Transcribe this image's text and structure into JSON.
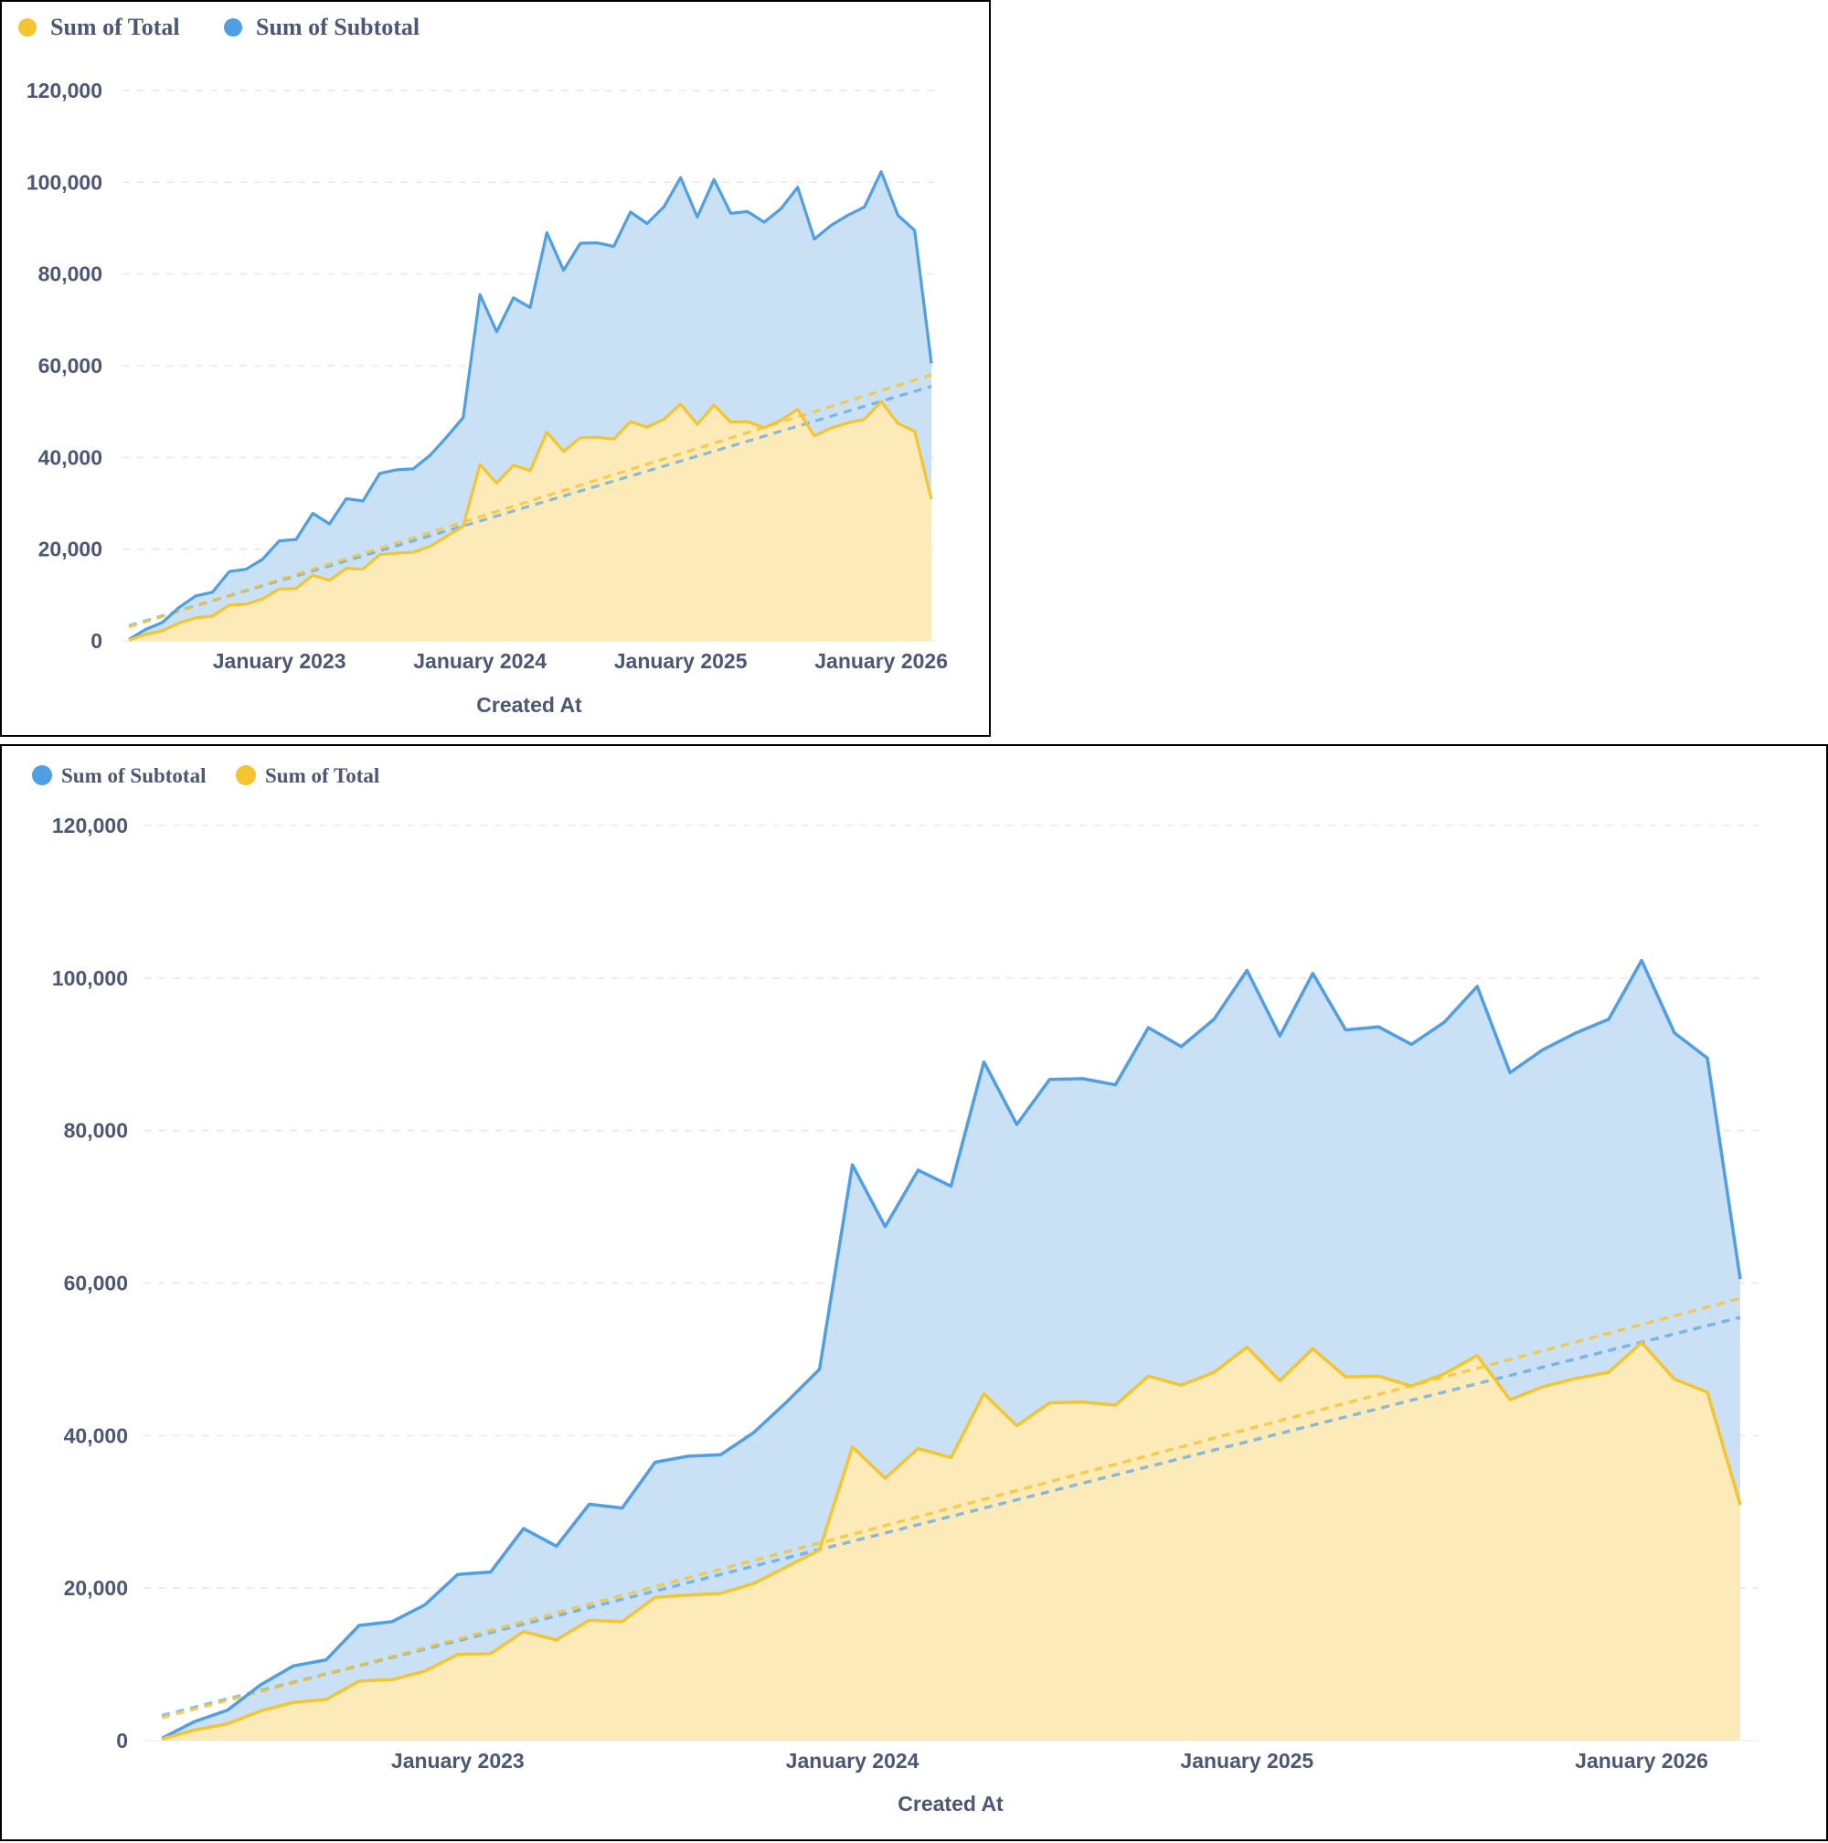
{
  "colors": {
    "total": "#f5c431",
    "subtotal": "#509ee3",
    "total_fill": "#fcebb8",
    "subtotal_fill": "#c9e0f5",
    "text": "#4c5773",
    "grid": "#e6e8ec"
  },
  "chart_data": [
    {
      "type": "area",
      "legend": [
        "Sum of Total",
        "Sum of Subtotal"
      ],
      "legend_position": "top-left",
      "xlabel": "Created At",
      "ylabel": "",
      "ylim": [
        0,
        120000
      ],
      "y_ticks": [
        "0",
        "20,000",
        "40,000",
        "60,000",
        "80,000",
        "100,000",
        "120,000"
      ],
      "x_tick_labels": [
        "January 2023",
        "January 2024",
        "January 2025",
        "January 2026"
      ],
      "grid": true,
      "trend_lines": true
    },
    {
      "type": "area",
      "legend": [
        "Sum of Subtotal",
        "Sum of Total"
      ],
      "legend_position": "top-left",
      "xlabel": "Created At",
      "ylabel": "",
      "ylim": [
        0,
        120000
      ],
      "y_ticks": [
        "0",
        "20,000",
        "40,000",
        "60,000",
        "80,000",
        "100,000",
        "120,000"
      ],
      "x_tick_labels": [
        "January 2023",
        "January 2024",
        "January 2025",
        "January 2026"
      ],
      "grid": true,
      "trend_lines": true
    }
  ],
  "series_data": {
    "x": [
      "2022-04",
      "2022-05",
      "2022-06",
      "2022-07",
      "2022-08",
      "2022-09",
      "2022-10",
      "2022-11",
      "2022-12",
      "2023-01",
      "2023-02",
      "2023-03",
      "2023-04",
      "2023-05",
      "2023-06",
      "2023-07",
      "2023-08",
      "2023-09",
      "2023-10",
      "2023-11",
      "2023-12",
      "2024-01",
      "2024-02",
      "2024-03",
      "2024-04",
      "2024-05",
      "2024-06",
      "2024-07",
      "2024-08",
      "2024-09",
      "2024-10",
      "2024-11",
      "2024-12",
      "2025-01",
      "2025-02",
      "2025-03",
      "2025-04",
      "2025-05",
      "2025-06",
      "2025-07",
      "2025-08",
      "2025-09",
      "2025-10",
      "2025-11",
      "2025-12",
      "2026-01",
      "2026-02",
      "2026-03",
      "2026-04"
    ],
    "subtotal": [
      300,
      2500,
      4000,
      7300,
      9800,
      10600,
      15100,
      15600,
      17800,
      21800,
      22100,
      27800,
      25500,
      31000,
      30500,
      36500,
      37300,
      37500,
      40400,
      44400,
      48700,
      75500,
      67400,
      74800,
      72700,
      89000,
      80800,
      86700,
      86800,
      86000,
      93500,
      91000,
      94600,
      101000,
      92400,
      100600,
      93200,
      93600,
      91300,
      94200,
      98900,
      87600,
      90600,
      92800,
      94600,
      102300,
      92800,
      89500,
      60500
    ],
    "total": [
      200,
      1400,
      2200,
      3900,
      5000,
      5400,
      7800,
      8000,
      9100,
      11300,
      11400,
      14300,
      13200,
      15800,
      15600,
      18800,
      19100,
      19300,
      20600,
      22800,
      25000,
      38500,
      34400,
      38300,
      37100,
      45500,
      41300,
      44300,
      44400,
      44000,
      47800,
      46600,
      48300,
      51600,
      47200,
      51400,
      47700,
      47800,
      46500,
      48100,
      50500,
      44700,
      46400,
      47500,
      48300,
      52200,
      47400,
      45700,
      30900
    ],
    "total_trend": [
      3000,
      58000
    ],
    "subtotal_trend": [
      3300,
      55500
    ]
  }
}
